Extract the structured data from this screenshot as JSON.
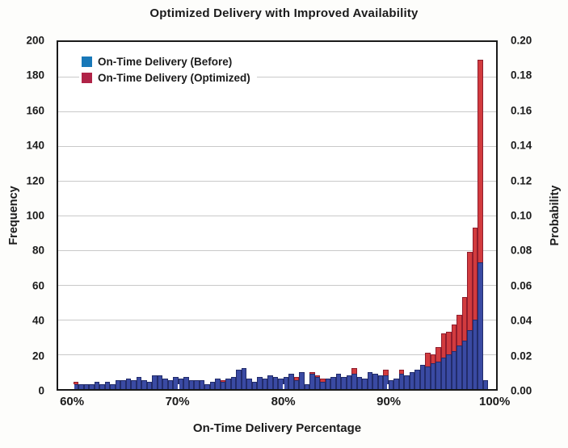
{
  "chart": {
    "title": "Optimized Delivery with Improved Availability",
    "xlabel": "On-Time Delivery Percentage",
    "ylabel_left": "Frequency",
    "ylabel_right": "Probability",
    "legend": [
      {
        "label": "On-Time Delivery (Before)",
        "swatch_color": "#1878b8"
      },
      {
        "label": "On-Time Delivery (Optimized)",
        "swatch_color": "#b02347"
      }
    ],
    "colors": {
      "frame": "#1a1a1a",
      "grid": "#c9c9c9",
      "background": "#ffffff"
    }
  },
  "chart_data": {
    "type": "bar",
    "subtype": "overlaid-histogram",
    "bin_start": 60,
    "bin_width": 0.5,
    "bin_unit": "%",
    "x_ticks": [
      "60%",
      "70%",
      "80%",
      "90%",
      "100%"
    ],
    "x_tick_positions_pct": [
      3.5,
      27.4,
      51.4,
      75.3,
      99.3
    ],
    "y_left": {
      "label": "Frequency",
      "min": 0,
      "max": 200,
      "step": 20
    },
    "y_right": {
      "label": "Probability",
      "min": 0.0,
      "max": 0.2,
      "step": 0.02,
      "decimals": 2
    },
    "grid": true,
    "legend_position": "top-left",
    "series": [
      {
        "name": "On-Time Delivery (Before)",
        "bar_color": "#3a4aa3",
        "edge_color": "#222c6b",
        "values": [
          3,
          3,
          3,
          3,
          4,
          3,
          4,
          3,
          5,
          5,
          6,
          5,
          7,
          5,
          4,
          8,
          8,
          6,
          5,
          7,
          6,
          7,
          5,
          5,
          5,
          3,
          4,
          6,
          4,
          6,
          7,
          11,
          12,
          6,
          4,
          7,
          6,
          8,
          7,
          6,
          7,
          9,
          5,
          10,
          3,
          9,
          7,
          4,
          6,
          7,
          9,
          7,
          8,
          9,
          7,
          6,
          10,
          9,
          8,
          8,
          5,
          6,
          9,
          8,
          10,
          11,
          14,
          13,
          15,
          16,
          18,
          20,
          22,
          25,
          28,
          34,
          40,
          73,
          5
        ]
      },
      {
        "name": "On-Time Delivery (Optimized)",
        "bar_color": "#d23b3e",
        "edge_color": "#8f1d2d",
        "values": [
          4,
          1,
          1,
          2,
          1,
          2,
          2,
          1,
          3,
          2,
          2,
          3,
          2,
          2,
          3,
          2,
          3,
          2,
          3,
          2,
          3,
          2,
          3,
          5,
          3,
          2,
          2,
          3,
          5,
          3,
          3,
          3,
          4,
          3,
          2,
          3,
          4,
          3,
          4,
          3,
          7,
          4,
          7,
          4,
          3,
          10,
          8,
          6,
          4,
          5,
          5,
          4,
          5,
          12,
          5,
          4,
          6,
          5,
          6,
          11,
          4,
          5,
          11,
          7,
          8,
          9,
          12,
          21,
          20,
          24,
          32,
          33,
          37,
          43,
          53,
          79,
          93,
          190,
          0
        ]
      }
    ]
  }
}
